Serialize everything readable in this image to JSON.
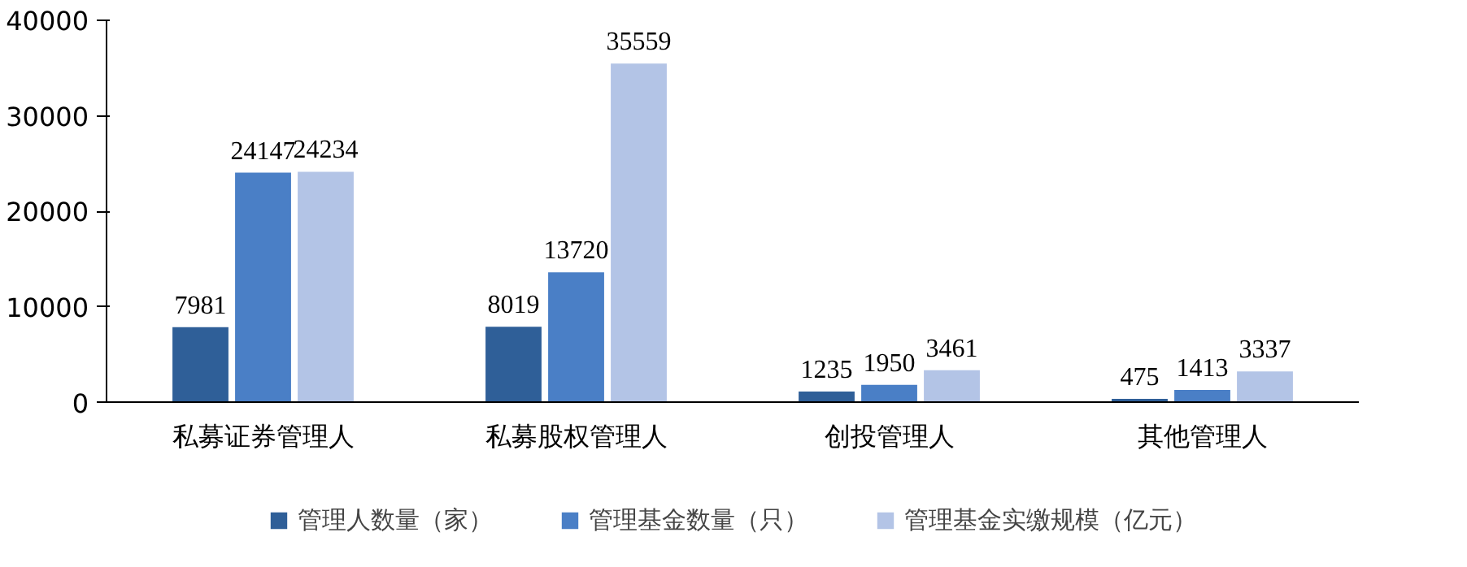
{
  "chart_data": {
    "type": "bar",
    "categories": [
      "私募证券管理人",
      "私募股权管理人",
      "创投管理人",
      "其他管理人"
    ],
    "series": [
      {
        "name": "管理人数量（家）",
        "color": "#2f5f98",
        "values": [
          7981,
          8019,
          1235,
          475
        ]
      },
      {
        "name": "管理基金数量（只）",
        "color": "#4a7fc6",
        "values": [
          24147,
          13720,
          1950,
          1413
        ]
      },
      {
        "name": "管理基金实缴规模（亿元）",
        "color": "#b3c4e6",
        "values": [
          24234,
          35559,
          3461,
          3337
        ]
      }
    ],
    "ylim": [
      0,
      40000
    ],
    "yticks": [
      0,
      10000,
      20000,
      30000,
      40000
    ],
    "data_labels": true,
    "legend": "bottom",
    "grid": false
  }
}
